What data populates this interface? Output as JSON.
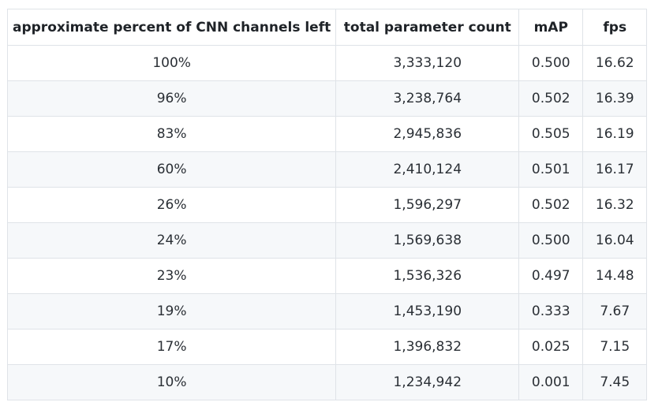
{
  "table": {
    "headers": [
      "approximate percent of CNN channels left",
      "total parameter count",
      "mAP",
      "fps"
    ],
    "rows": [
      [
        "100%",
        "3,333,120",
        "0.500",
        "16.62"
      ],
      [
        "96%",
        "3,238,764",
        "0.502",
        "16.39"
      ],
      [
        "83%",
        "2,945,836",
        "0.505",
        "16.19"
      ],
      [
        "60%",
        "2,410,124",
        "0.501",
        "16.17"
      ],
      [
        "26%",
        "1,596,297",
        "0.502",
        "16.32"
      ],
      [
        "24%",
        "1,569,638",
        "0.500",
        "16.04"
      ],
      [
        "23%",
        "1,536,326",
        "0.497",
        "14.48"
      ],
      [
        "19%",
        "1,453,190",
        "0.333",
        "7.67"
      ],
      [
        "17%",
        "1,396,832",
        "0.025",
        "7.15"
      ],
      [
        "10%",
        "1,234,942",
        "0.001",
        "7.45"
      ]
    ]
  }
}
